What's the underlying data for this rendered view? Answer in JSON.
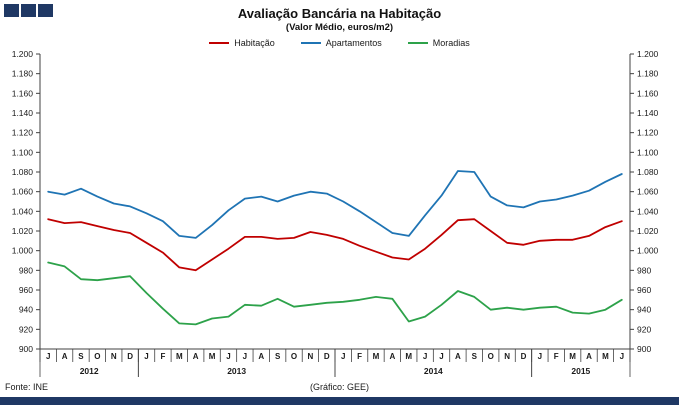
{
  "header": {
    "title": "Avaliação Bancária na Habitação",
    "subtitle": "(Valor Médio, euros/m2)"
  },
  "footer": {
    "source": "Fonte: INE",
    "credit": "(Gráfico: GEE)"
  },
  "colors": {
    "navy": "#1F3864",
    "axis": "#404040",
    "text": "#1a1a1a"
  },
  "chart_data": {
    "type": "line",
    "title": "Avaliação Bancária na Habitação",
    "subtitle": "(Valor Médio, euros/m2)",
    "ylabel": "euros/m2",
    "ylim": [
      900,
      1200
    ],
    "ytick_step": 20,
    "grid": false,
    "legend_position": "top",
    "categories": [
      "J",
      "A",
      "S",
      "O",
      "N",
      "D",
      "J",
      "F",
      "M",
      "A",
      "M",
      "J",
      "J",
      "A",
      "S",
      "O",
      "N",
      "D",
      "J",
      "F",
      "M",
      "A",
      "M",
      "J",
      "J",
      "A",
      "S",
      "O",
      "N",
      "D",
      "J",
      "F",
      "M",
      "A",
      "M",
      "J"
    ],
    "year_groups": [
      {
        "label": "2012",
        "start": 0,
        "count": 6
      },
      {
        "label": "2013",
        "start": 6,
        "count": 12
      },
      {
        "label": "2014",
        "start": 18,
        "count": 12
      },
      {
        "label": "2015",
        "start": 30,
        "count": 6
      }
    ],
    "series": [
      {
        "name": "Habitação",
        "color": "#C00000",
        "values": [
          1032,
          1028,
          1029,
          1025,
          1021,
          1018,
          1008,
          998,
          983,
          980,
          991,
          1002,
          1014,
          1014,
          1012,
          1013,
          1019,
          1016,
          1012,
          1005,
          999,
          993,
          991,
          1002,
          1016,
          1031,
          1032,
          1020,
          1008,
          1006,
          1010,
          1011,
          1011,
          1015,
          1024,
          1030
        ]
      },
      {
        "name": "Apartamentos",
        "color": "#1F74B4",
        "values": [
          1060,
          1057,
          1063,
          1055,
          1048,
          1045,
          1038,
          1030,
          1015,
          1013,
          1026,
          1041,
          1053,
          1055,
          1050,
          1056,
          1060,
          1058,
          1050,
          1040,
          1029,
          1018,
          1015,
          1036,
          1056,
          1081,
          1080,
          1055,
          1046,
          1044,
          1050,
          1052,
          1056,
          1061,
          1070,
          1078
        ]
      },
      {
        "name": "Moradias",
        "color": "#2DA24A",
        "values": [
          988,
          984,
          971,
          970,
          972,
          974,
          957,
          941,
          926,
          925,
          931,
          933,
          945,
          944,
          951,
          943,
          945,
          947,
          948,
          950,
          953,
          951,
          928,
          933,
          945,
          959,
          953,
          940,
          942,
          940,
          942,
          943,
          937,
          936,
          940,
          950
        ]
      }
    ]
  }
}
